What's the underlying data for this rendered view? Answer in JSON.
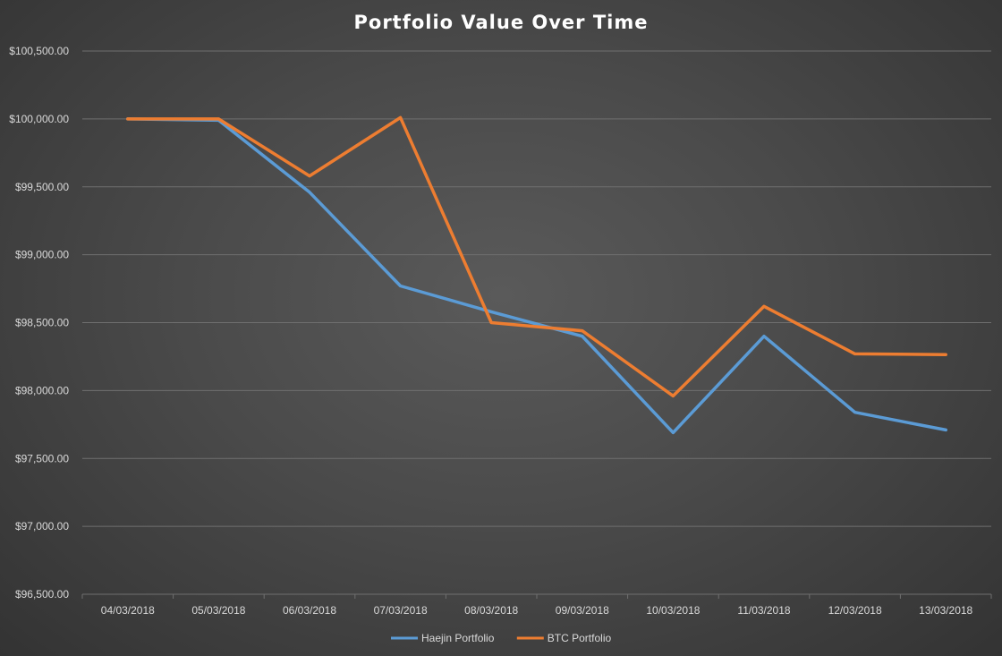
{
  "chart_data": {
    "type": "line",
    "title": "Portfolio Value Over Time",
    "xlabel": "",
    "ylabel": "",
    "categories": [
      "04/03/2018",
      "05/03/2018",
      "06/03/2018",
      "07/03/2018",
      "08/03/2018",
      "09/03/2018",
      "10/03/2018",
      "11/03/2018",
      "12/03/2018",
      "13/03/2018"
    ],
    "ylim": [
      96500,
      100500
    ],
    "y_ticks": [
      100500,
      100000,
      99500,
      99000,
      98500,
      98000,
      97500,
      97000,
      96500
    ],
    "y_tick_labels": [
      "$100,500.00",
      "$100,000.00",
      "$99,500.00",
      "$99,000.00",
      "$98,500.00",
      "$98,000.00",
      "$97,500.00",
      "$97,000.00",
      "$96,500.00"
    ],
    "grid": true,
    "legend_position": "bottom",
    "series": [
      {
        "name": "Haejin Portfolio",
        "color": "#5b9bd5",
        "values": [
          100000,
          99990,
          99460,
          98770,
          98580,
          98400,
          97690,
          98400,
          97840,
          97710
        ]
      },
      {
        "name": "BTC Portfolio",
        "color": "#ed7d31",
        "values": [
          100000,
          100000,
          99580,
          100010,
          98500,
          98440,
          97960,
          98620,
          98270,
          98265
        ]
      }
    ]
  }
}
